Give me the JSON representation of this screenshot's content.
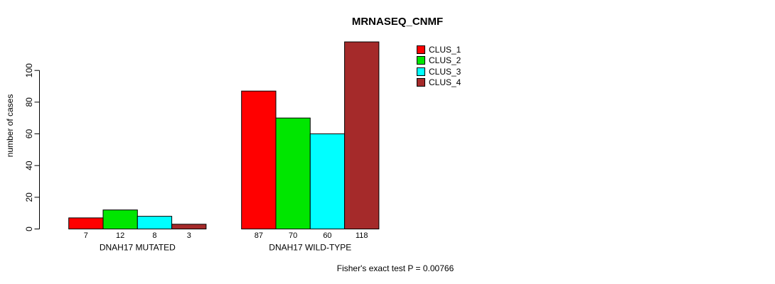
{
  "chart_data": {
    "type": "bar",
    "title": "MRNASEQ_CNMF",
    "ylabel": "number of cases",
    "xlabel": "",
    "footer": "Fisher's exact test P = 0.00766",
    "categories": [
      "DNAH17 MUTATED",
      "DNAH17 WILD-TYPE"
    ],
    "series": [
      {
        "name": "CLUS_1",
        "color": "#ff0000",
        "values": [
          7,
          87
        ]
      },
      {
        "name": "CLUS_2",
        "color": "#00e600",
        "values": [
          12,
          70
        ]
      },
      {
        "name": "CLUS_3",
        "color": "#00ffff",
        "values": [
          8,
          60
        ]
      },
      {
        "name": "CLUS_4",
        "color": "#a52a2a",
        "values": [
          3,
          118
        ]
      }
    ],
    "yticks": [
      0,
      20,
      40,
      60,
      80,
      100
    ],
    "ylim": [
      0,
      118
    ],
    "show_bar_values": true,
    "grid": false,
    "bar_border_color": "#000000",
    "legend_position": "top-right",
    "background_color": "#ffffff",
    "text_color": "#000000"
  }
}
